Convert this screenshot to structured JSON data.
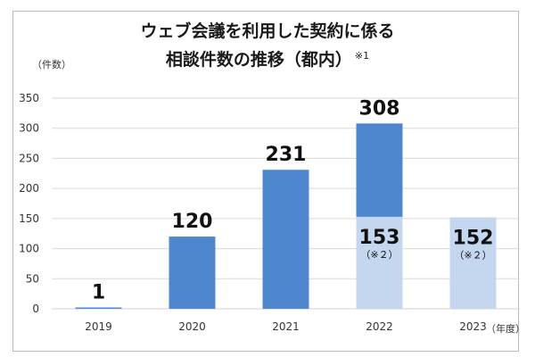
{
  "chart_data": {
    "type": "bar",
    "title_line1": "ウェブ会議を利用した契約に係る",
    "title_line2": "相談件数の推移（都内）",
    "title_note": "※1",
    "ylabel": "（件数）",
    "xunit": "（年度）",
    "ylim": [
      0,
      350
    ],
    "yticks": [
      "0",
      "50",
      "100",
      "150",
      "200",
      "250",
      "300",
      "350"
    ],
    "categories": [
      "2019",
      "2020",
      "2021",
      "2022",
      "2023"
    ],
    "values": [
      1,
      120,
      231,
      308,
      152
    ],
    "value_labels": [
      "1",
      "120",
      "231",
      "308",
      "152"
    ],
    "partial_values": [
      null,
      null,
      null,
      153,
      152
    ],
    "partial_labels": [
      "",
      "",
      "",
      "153",
      "152"
    ],
    "partial_notes": [
      "",
      "",
      "",
      "（※２）",
      "（※２）"
    ],
    "grid": true,
    "colors": {
      "bar_full": "#4f87cf",
      "bar_partial": "#c5d7ef",
      "grid": "#d9d9d9"
    }
  }
}
